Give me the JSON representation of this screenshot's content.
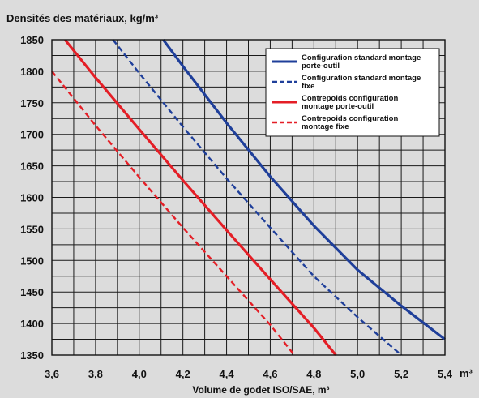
{
  "chart_data": {
    "type": "line",
    "title": "Densités des matériaux, kg/m³",
    "xlabel": "Volume de godet ISO/SAE, m³",
    "x_unit": "m³",
    "ylabel": "",
    "xlim": [
      3.6,
      5.4
    ],
    "ylim": [
      1350,
      1850
    ],
    "x_ticks": [
      "3,6",
      "3,8",
      "4,0",
      "4,2",
      "4,4",
      "4,6",
      "4,8",
      "5,0",
      "5,2",
      "5,4"
    ],
    "x_tick_values": [
      3.6,
      3.8,
      4.0,
      4.2,
      4.4,
      4.6,
      4.8,
      5.0,
      5.2,
      5.4
    ],
    "y_ticks": [
      "1350",
      "1400",
      "1450",
      "1500",
      "1550",
      "1600",
      "1650",
      "1700",
      "1750",
      "1800",
      "1850"
    ],
    "y_tick_values": [
      1350,
      1400,
      1450,
      1500,
      1550,
      1600,
      1650,
      1700,
      1750,
      1800,
      1850
    ],
    "x_grid_step": 0.1,
    "y_grid_step": 25,
    "grid": true,
    "legend_position": "top-right",
    "series": [
      {
        "name": "Configuration standard montage porte-outil",
        "legend_lines": [
          "Configuration standard montage",
          "porte-outil"
        ],
        "color": "#1f3f9a",
        "dash": "solid",
        "x": [
          4.11,
          4.2,
          4.4,
          4.6,
          4.8,
          5.0,
          5.2,
          5.4
        ],
        "y": [
          1850,
          1808,
          1718,
          1633,
          1555,
          1485,
          1428,
          1375
        ]
      },
      {
        "name": "Configuration standard montage fixe",
        "legend_lines": [
          "Configuration standard montage",
          "fixe"
        ],
        "color": "#1f3f9a",
        "dash": "dashed",
        "x": [
          3.88,
          4.0,
          4.2,
          4.4,
          4.6,
          4.8,
          5.0,
          5.2
        ],
        "y": [
          1850,
          1797,
          1712,
          1630,
          1552,
          1475,
          1410,
          1350
        ]
      },
      {
        "name": "Contrepoids configuration montage porte-outil",
        "legend_lines": [
          "Contrepoids configuration",
          "montage porte-outil"
        ],
        "color": "#e41e26",
        "dash": "solid",
        "x": [
          3.66,
          3.8,
          4.0,
          4.2,
          4.4,
          4.6,
          4.8,
          4.9
        ],
        "y": [
          1850,
          1790,
          1708,
          1627,
          1548,
          1470,
          1393,
          1350
        ]
      },
      {
        "name": "Contrepoids configuration montage fixe",
        "legend_lines": [
          "Contrepoids configuration",
          "montage fixe"
        ],
        "color": "#e41e26",
        "dash": "dashed",
        "x": [
          3.6,
          3.8,
          4.0,
          4.2,
          4.4,
          4.6,
          4.71
        ],
        "y": [
          1800,
          1714,
          1632,
          1552,
          1475,
          1398,
          1350
        ]
      }
    ]
  }
}
